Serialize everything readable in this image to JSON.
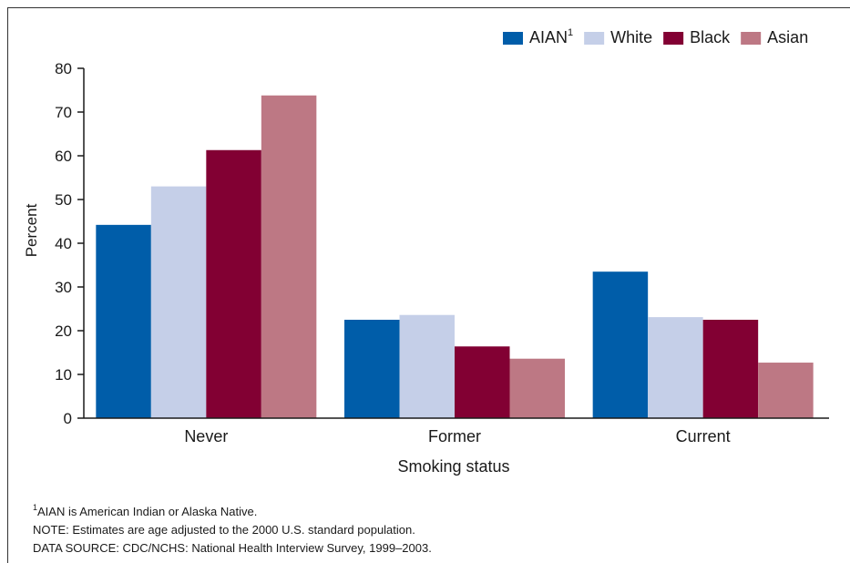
{
  "chart_data": {
    "type": "bar",
    "categories": [
      "Never",
      "Former",
      "Current"
    ],
    "series": [
      {
        "name": "AIAN",
        "name_sup": "1",
        "color": "#005da9",
        "values": [
          44.2,
          22.5,
          33.5
        ]
      },
      {
        "name": "White",
        "color": "#c5cfe8",
        "values": [
          53.0,
          23.6,
          23.1
        ]
      },
      {
        "name": "Black",
        "color": "#820033",
        "values": [
          61.3,
          16.4,
          22.5
        ]
      },
      {
        "name": "Asian",
        "color": "#bd7884",
        "values": [
          73.8,
          13.6,
          12.7
        ]
      }
    ],
    "xlabel": "Smoking status",
    "ylabel": "Percent",
    "ylim": [
      0,
      80
    ],
    "yticks": [
      0,
      10,
      20,
      30,
      40,
      50,
      60,
      70,
      80
    ],
    "grid": false,
    "legend_position": "top-right"
  },
  "footnotes": {
    "note1_sup": "1",
    "note1_text": "AIAN is American Indian or Alaska Native.",
    "note2": "NOTE: Estimates are age adjusted to the 2000 U.S. standard population.",
    "note3": "DATA SOURCE: CDC/NCHS: National Health Interview Survey, 1999–2003."
  }
}
